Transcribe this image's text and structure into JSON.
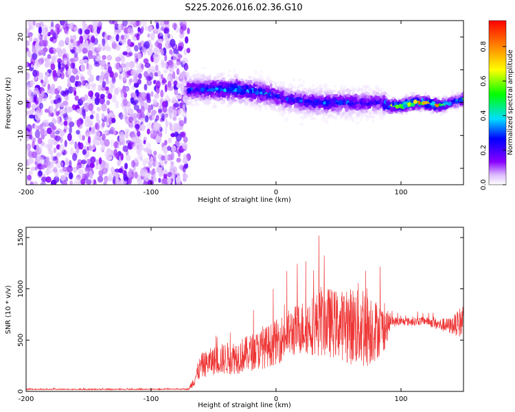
{
  "figure_title": "S225.2026.016.02.36.G10",
  "chart_data": [
    {
      "type": "heatmap",
      "title": "S225.2026.016.02.36.G10",
      "xlabel": "Height of straight line (km)",
      "ylabel": "Frequency (Hz)",
      "xlim": [
        -200,
        150
      ],
      "ylim": [
        -25,
        25
      ],
      "xticks": [
        -200,
        -100,
        0,
        100
      ],
      "yticks": [
        -20,
        -10,
        0,
        10,
        20
      ],
      "colorbar": {
        "label": "Normalized spectral amplitude",
        "range": [
          0.0,
          0.95
        ],
        "ticks": [
          0.0,
          0.2,
          0.4,
          0.6,
          0.8
        ],
        "tick_labels": [
          "0.0",
          "0.2",
          "0.4",
          "0.6",
          "0.8"
        ],
        "colormap": "rainbow"
      },
      "ridge": {
        "x": [
          -70,
          -50,
          -30,
          -10,
          10,
          30,
          50,
          70,
          85,
          90,
          100,
          110,
          120,
          130,
          140,
          150
        ],
        "freq": [
          4,
          4,
          4,
          3,
          1,
          0,
          0,
          0,
          0,
          -1,
          -1,
          0,
          0,
          -1,
          0,
          1
        ],
        "amplitude": [
          0.3,
          0.4,
          0.45,
          0.4,
          0.3,
          0.35,
          0.35,
          0.3,
          0.25,
          0.7,
          0.85,
          0.85,
          0.8,
          0.75,
          0.45,
          0.55
        ]
      }
    },
    {
      "type": "line",
      "xlabel": "Height of straight line (km)",
      "ylabel": "SNR (10 * v/v)",
      "xlim": [
        -200,
        150
      ],
      "ylim": [
        0,
        1600
      ],
      "xticks": [
        -200,
        -100,
        0,
        100
      ],
      "yticks": [
        0,
        500,
        1000,
        1500
      ],
      "color": "#ee3333",
      "envelope": {
        "x": [
          -200,
          -150,
          -100,
          -70,
          -66,
          -60,
          -50,
          -40,
          -30,
          -20,
          -10,
          0,
          10,
          20,
          30,
          40,
          50,
          60,
          70,
          80,
          88,
          92,
          100,
          110,
          120,
          130,
          140,
          145,
          150
        ],
        "mean": [
          20,
          20,
          20,
          22,
          100,
          250,
          300,
          320,
          340,
          380,
          420,
          480,
          560,
          620,
          650,
          680,
          650,
          640,
          650,
          600,
          620,
          680,
          680,
          680,
          690,
          650,
          640,
          660,
          690
        ],
        "spread": [
          5,
          5,
          5,
          5,
          60,
          120,
          140,
          160,
          170,
          180,
          200,
          220,
          240,
          260,
          300,
          350,
          330,
          380,
          450,
          300,
          200,
          50,
          40,
          40,
          40,
          60,
          80,
          120,
          200
        ]
      }
    }
  ]
}
